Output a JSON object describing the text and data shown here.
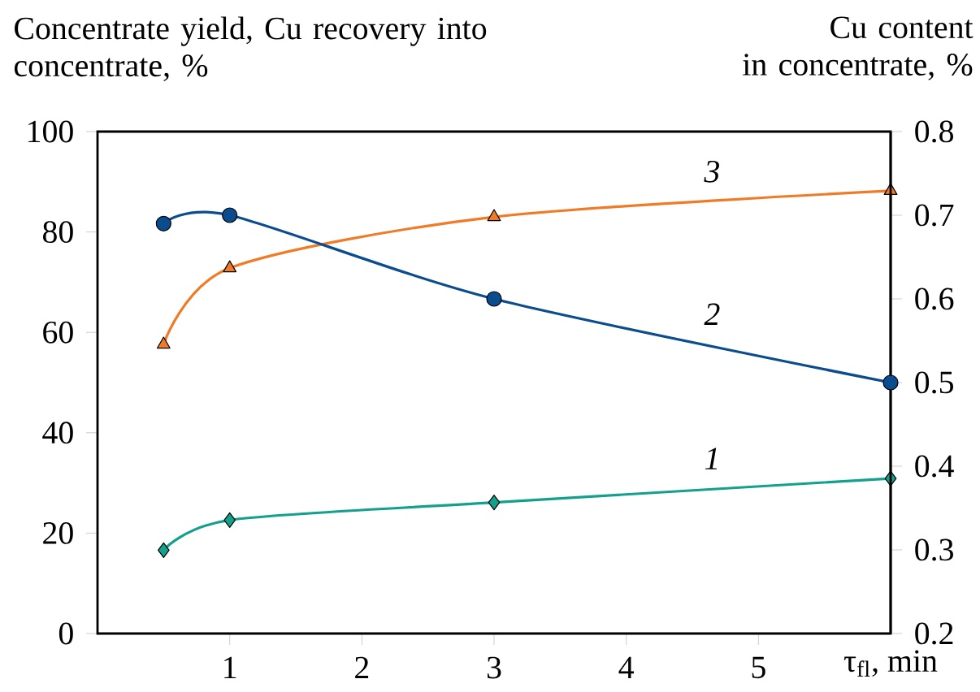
{
  "chart_data": {
    "type": "line",
    "xlabel": "τ$_{fl}$, min",
    "ylabel": "Concentrate yield, Cu recovery into concentrate, %",
    "y2label": "Cu content in concentrate, %",
    "xlim": [
      0,
      6
    ],
    "xticks": [
      1,
      2,
      3,
      4,
      5
    ],
    "ylim": [
      0,
      100
    ],
    "yticks": [
      0,
      20,
      40,
      60,
      80,
      100
    ],
    "y2lim": [
      0.2,
      0.8
    ],
    "y2ticks": [
      0.2,
      0.3,
      0.4,
      0.5,
      0.6,
      0.7,
      0.8
    ],
    "x": [
      0.5,
      1,
      3,
      6
    ],
    "series": [
      {
        "name": "1",
        "color": "#13a08c",
        "marker": "diamond",
        "values": [
          16.6,
          22.6,
          26.1,
          30.9
        ]
      },
      {
        "name": "2",
        "color": "#0b4c8f",
        "marker": "circle",
        "axis": "y2",
        "values": [
          0.69,
          0.7,
          0.6,
          0.5
        ]
      },
      {
        "name": "3",
        "color": "#f07a26",
        "marker": "triangle",
        "values": [
          57.6,
          72.8,
          83.0,
          88.2
        ]
      }
    ]
  }
}
